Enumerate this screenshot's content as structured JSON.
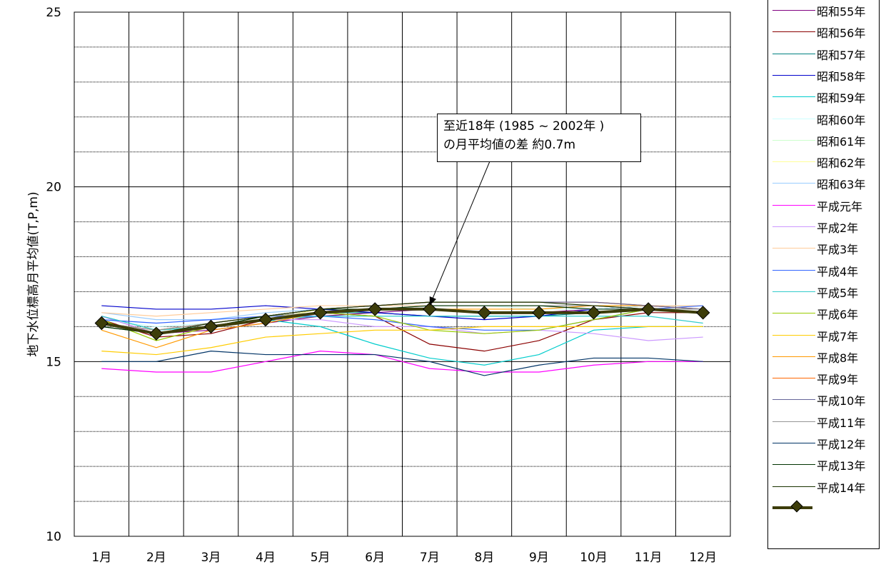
{
  "chart_data": {
    "type": "line",
    "title": "",
    "xlabel": "",
    "ylabel": "地下水位標高月平均値(T,P,m)",
    "categories": [
      "1月",
      "2月",
      "3月",
      "4月",
      "5月",
      "6月",
      "7月",
      "8月",
      "9月",
      "10月",
      "11月",
      "12月"
    ],
    "ylim": [
      10,
      25
    ],
    "yticks": [
      10,
      15,
      20,
      25
    ],
    "grid": true,
    "legend_position": "right",
    "series": [
      {
        "name": "昭和55年",
        "color": "#800080",
        "values": [
          16.3,
          15.8,
          15.9,
          16.1,
          16.3,
          16.4,
          16.5,
          16.4,
          16.4,
          16.5,
          16.5,
          16.4
        ]
      },
      {
        "name": "昭和56年",
        "color": "#8B0000",
        "values": [
          16.2,
          15.7,
          15.8,
          16.2,
          16.4,
          16.3,
          15.5,
          15.3,
          15.6,
          16.2,
          16.4,
          16.4
        ]
      },
      {
        "name": "昭和57年",
        "color": "#008080",
        "values": [
          16.3,
          15.9,
          16.0,
          16.2,
          16.4,
          16.4,
          16.3,
          16.3,
          16.3,
          16.4,
          16.5,
          16.5
        ]
      },
      {
        "name": "昭和58年",
        "color": "#0000CC",
        "values": [
          16.6,
          16.5,
          16.5,
          16.6,
          16.5,
          16.4,
          16.3,
          16.2,
          16.3,
          16.5,
          16.6,
          16.6
        ]
      },
      {
        "name": "昭和59年",
        "color": "#00CCCC",
        "values": [
          16.1,
          15.9,
          16.0,
          16.2,
          16.0,
          15.5,
          15.1,
          14.9,
          15.2,
          15.9,
          16.0,
          16.0
        ]
      },
      {
        "name": "昭和60年",
        "color": "#CCFFFF",
        "values": [
          16.2,
          16.0,
          16.1,
          16.3,
          16.4,
          16.5,
          16.6,
          16.6,
          16.5,
          16.5,
          16.6,
          16.6
        ]
      },
      {
        "name": "昭和61年",
        "color": "#CCFFCC",
        "values": [
          16.1,
          15.9,
          16.1,
          16.3,
          16.5,
          16.6,
          16.6,
          16.6,
          16.6,
          16.6,
          16.6,
          16.6
        ]
      },
      {
        "name": "昭和62年",
        "color": "#FFFF99",
        "values": [
          16.0,
          15.8,
          16.0,
          16.2,
          16.5,
          16.6,
          16.7,
          16.7,
          16.7,
          16.7,
          16.6,
          16.6
        ]
      },
      {
        "name": "昭和63年",
        "color": "#99CCFF",
        "values": [
          16.4,
          16.2,
          16.2,
          16.4,
          16.5,
          16.6,
          16.6,
          16.6,
          16.6,
          16.6,
          16.6,
          16.6
        ]
      },
      {
        "name": "平成元年",
        "color": "#FF00FF",
        "values": [
          14.8,
          14.7,
          14.7,
          15.0,
          15.3,
          15.2,
          14.8,
          14.7,
          14.7,
          14.9,
          15.0,
          15.0
        ]
      },
      {
        "name": "平成2年",
        "color": "#CC99FF",
        "values": [
          16.3,
          15.8,
          16.0,
          16.2,
          16.2,
          16.0,
          16.0,
          15.8,
          15.9,
          15.8,
          15.6,
          15.7
        ]
      },
      {
        "name": "平成3年",
        "color": "#FFCC99",
        "values": [
          16.4,
          16.3,
          16.4,
          16.5,
          16.6,
          16.6,
          16.6,
          16.6,
          16.6,
          16.6,
          16.6,
          16.6
        ]
      },
      {
        "name": "平成4年",
        "color": "#3366FF",
        "values": [
          16.2,
          16.1,
          16.2,
          16.3,
          16.3,
          16.2,
          16.0,
          15.9,
          15.9,
          16.2,
          16.5,
          16.6
        ]
      },
      {
        "name": "平成5年",
        "color": "#33CCCC",
        "values": [
          16.3,
          15.9,
          16.0,
          16.2,
          16.3,
          16.3,
          16.3,
          16.3,
          16.3,
          16.3,
          16.3,
          16.1
        ]
      },
      {
        "name": "平成6年",
        "color": "#99CC00",
        "values": [
          16.2,
          15.6,
          16.0,
          16.3,
          16.4,
          16.3,
          15.9,
          15.8,
          15.9,
          16.2,
          16.5,
          16.5
        ]
      },
      {
        "name": "平成7年",
        "color": "#FFCC00",
        "values": [
          15.3,
          15.2,
          15.4,
          15.7,
          15.8,
          15.9,
          15.9,
          16.0,
          16.0,
          16.0,
          16.0,
          16.0
        ]
      },
      {
        "name": "平成8年",
        "color": "#FF9900",
        "values": [
          15.9,
          15.4,
          15.9,
          16.1,
          16.4,
          16.5,
          16.5,
          16.5,
          16.5,
          16.6,
          16.6,
          16.5
        ]
      },
      {
        "name": "平成9年",
        "color": "#FF6600",
        "values": [
          16.1,
          15.9,
          16.1,
          16.3,
          16.5,
          16.6,
          16.7,
          16.7,
          16.7,
          16.7,
          16.6,
          16.5
        ]
      },
      {
        "name": "平成10年",
        "color": "#666699",
        "values": [
          16.0,
          15.8,
          16.0,
          16.3,
          16.5,
          16.6,
          16.7,
          16.7,
          16.7,
          16.7,
          16.6,
          16.5
        ]
      },
      {
        "name": "平成11年",
        "color": "#969696",
        "values": [
          16.1,
          15.9,
          16.1,
          16.3,
          16.4,
          16.5,
          16.6,
          16.6,
          16.6,
          16.6,
          16.5,
          16.5
        ]
      },
      {
        "name": "平成12年",
        "color": "#003366",
        "values": [
          15.0,
          15.0,
          15.3,
          15.2,
          15.2,
          15.2,
          15.0,
          14.6,
          14.9,
          15.1,
          15.1,
          15.0
        ]
      },
      {
        "name": "平成13年",
        "color": "#003300",
        "values": [
          16.0,
          15.8,
          16.0,
          16.3,
          16.5,
          16.5,
          16.6,
          16.6,
          16.6,
          16.5,
          16.5,
          16.4
        ]
      },
      {
        "name": "平成14年",
        "color": "#1A3300",
        "values": [
          16.1,
          15.8,
          16.1,
          16.3,
          16.5,
          16.6,
          16.7,
          16.7,
          16.7,
          16.6,
          16.5,
          16.4
        ]
      },
      {
        "name": "",
        "color": "#3D3D0A",
        "marker": "diamond",
        "values": [
          16.1,
          15.8,
          16.0,
          16.2,
          16.4,
          16.5,
          16.5,
          16.4,
          16.4,
          16.4,
          16.5,
          16.4
        ]
      }
    ],
    "annotation": {
      "line1": "至近18年 (1985 ~ 2002年 )",
      "line2": "の月平均値の差  約0.7m",
      "target_category": "7月",
      "target_value": 16.6
    }
  }
}
